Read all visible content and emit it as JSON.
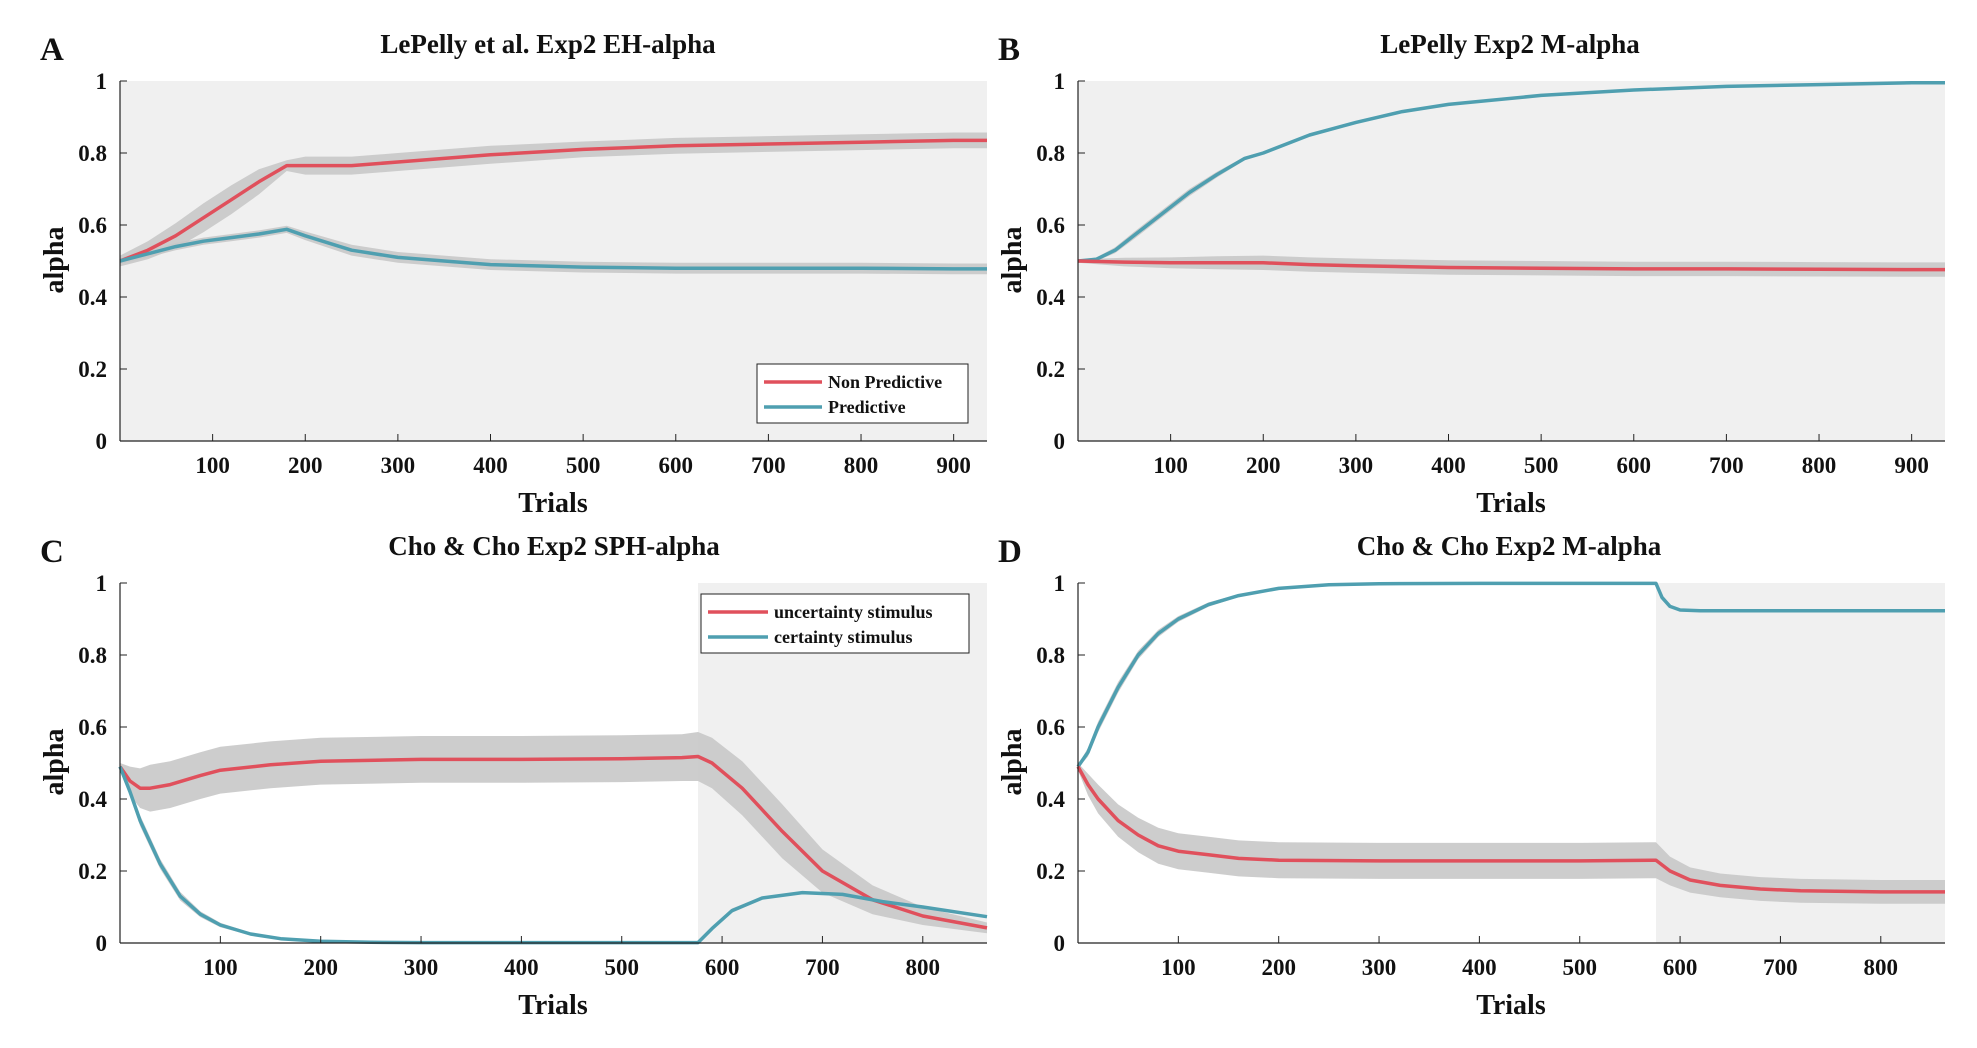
{
  "colors": {
    "red": "#e0505c",
    "teal": "#4f9fb0",
    "band": "#c8c8c8",
    "shade": "#f0f0f0"
  },
  "chart_data": [
    {
      "panel": "A",
      "type": "line",
      "title": "LePelly et al. Exp2 EH-alpha",
      "xlabel": "Trials",
      "ylabel": "alpha",
      "xlim": [
        0,
        936
      ],
      "ylim": [
        0,
        1
      ],
      "xticks": [
        100,
        200,
        300,
        400,
        500,
        600,
        700,
        800,
        900
      ],
      "yticks": [
        0,
        0.2,
        0.4,
        0.6,
        0.8,
        1
      ],
      "shaded_x": [
        [
          0,
          936
        ]
      ],
      "legend": {
        "position": "bottom-right"
      },
      "series": [
        {
          "name": "Non Predictive",
          "color": "red",
          "x": [
            0,
            30,
            60,
            90,
            120,
            150,
            180,
            200,
            250,
            300,
            350,
            400,
            500,
            600,
            700,
            800,
            900,
            936
          ],
          "y": [
            0.5,
            0.53,
            0.57,
            0.62,
            0.67,
            0.72,
            0.765,
            0.765,
            0.765,
            0.775,
            0.785,
            0.795,
            0.81,
            0.82,
            0.825,
            0.83,
            0.835,
            0.835
          ],
          "band": [
            0.015,
            0.025,
            0.035,
            0.04,
            0.04,
            0.035,
            0.015,
            0.025,
            0.025,
            0.025,
            0.025,
            0.025,
            0.022,
            0.022,
            0.022,
            0.022,
            0.022,
            0.022
          ]
        },
        {
          "name": "Predictive",
          "color": "teal",
          "x": [
            0,
            30,
            60,
            90,
            120,
            150,
            180,
            200,
            250,
            300,
            350,
            400,
            500,
            600,
            700,
            800,
            900,
            936
          ],
          "y": [
            0.5,
            0.52,
            0.54,
            0.555,
            0.565,
            0.575,
            0.588,
            0.57,
            0.53,
            0.51,
            0.5,
            0.49,
            0.483,
            0.48,
            0.48,
            0.48,
            0.478,
            0.478
          ],
          "band": [
            0.008,
            0.01,
            0.01,
            0.01,
            0.01,
            0.01,
            0.01,
            0.012,
            0.015,
            0.015,
            0.015,
            0.015,
            0.015,
            0.015,
            0.015,
            0.015,
            0.015,
            0.015
          ]
        }
      ]
    },
    {
      "panel": "B",
      "type": "line",
      "title": "LePelly Exp2 M-alpha",
      "xlabel": "Trials",
      "ylabel": "alpha",
      "xlim": [
        0,
        936
      ],
      "ylim": [
        0,
        1
      ],
      "xticks": [
        100,
        200,
        300,
        400,
        500,
        600,
        700,
        800,
        900
      ],
      "yticks": [
        0,
        0.2,
        0.4,
        0.6,
        0.8,
        1
      ],
      "shaded_x": [
        [
          0,
          936
        ]
      ],
      "series": [
        {
          "color": "teal",
          "x": [
            0,
            20,
            40,
            60,
            90,
            120,
            150,
            180,
            200,
            250,
            300,
            350,
            400,
            500,
            600,
            700,
            800,
            900,
            936
          ],
          "y": [
            0.5,
            0.505,
            0.53,
            0.57,
            0.63,
            0.69,
            0.74,
            0.785,
            0.8,
            0.85,
            0.885,
            0.915,
            0.935,
            0.96,
            0.975,
            0.985,
            0.99,
            0.995,
            0.995
          ],
          "band": [
            0.003,
            0.005,
            0.008,
            0.01,
            0.01,
            0.01,
            0.008,
            0.005,
            0.004,
            0.004,
            0.003,
            0.003,
            0.003,
            0.002,
            0.002,
            0.002,
            0.002,
            0.002,
            0.002
          ]
        },
        {
          "color": "red",
          "x": [
            0,
            50,
            100,
            150,
            200,
            250,
            300,
            400,
            500,
            600,
            700,
            800,
            900,
            936
          ],
          "y": [
            0.5,
            0.497,
            0.495,
            0.495,
            0.495,
            0.49,
            0.487,
            0.482,
            0.48,
            0.478,
            0.478,
            0.477,
            0.476,
            0.476
          ],
          "band": [
            0.005,
            0.012,
            0.015,
            0.018,
            0.02,
            0.02,
            0.02,
            0.02,
            0.02,
            0.02,
            0.02,
            0.02,
            0.02,
            0.02
          ]
        }
      ]
    },
    {
      "panel": "C",
      "type": "line",
      "title": "Cho & Cho Exp2 SPH-alpha",
      "xlabel": "Trials",
      "ylabel": "alpha",
      "xlim": [
        0,
        864
      ],
      "ylim": [
        0,
        1
      ],
      "xticks": [
        100,
        200,
        300,
        400,
        500,
        600,
        700,
        800
      ],
      "yticks": [
        0,
        0.2,
        0.4,
        0.6,
        0.8,
        1
      ],
      "shaded_x": [
        [
          576,
          864
        ]
      ],
      "legend": {
        "position": "top-right"
      },
      "series": [
        {
          "name": "uncertainty stimulus",
          "color": "red",
          "x": [
            0,
            10,
            20,
            30,
            50,
            80,
            100,
            150,
            200,
            300,
            400,
            500,
            560,
            576,
            590,
            620,
            660,
            700,
            750,
            800,
            864
          ],
          "y": [
            0.49,
            0.45,
            0.43,
            0.43,
            0.44,
            0.465,
            0.48,
            0.495,
            0.505,
            0.51,
            0.51,
            0.512,
            0.515,
            0.518,
            0.5,
            0.43,
            0.31,
            0.2,
            0.12,
            0.075,
            0.042
          ],
          "band": [
            0.01,
            0.04,
            0.055,
            0.065,
            0.065,
            0.065,
            0.065,
            0.065,
            0.065,
            0.065,
            0.065,
            0.065,
            0.065,
            0.068,
            0.07,
            0.075,
            0.075,
            0.06,
            0.04,
            0.025,
            0.015
          ]
        },
        {
          "name": "certainty stimulus",
          "color": "teal",
          "x": [
            0,
            10,
            20,
            40,
            60,
            80,
            100,
            130,
            160,
            200,
            250,
            300,
            576,
            590,
            610,
            640,
            680,
            720,
            760,
            800,
            864
          ],
          "y": [
            0.49,
            0.42,
            0.34,
            0.22,
            0.13,
            0.08,
            0.05,
            0.025,
            0.012,
            0.005,
            0.002,
            0.001,
            0.001,
            0.04,
            0.09,
            0.125,
            0.14,
            0.135,
            0.115,
            0.1,
            0.073
          ],
          "band": [
            0.005,
            0.012,
            0.015,
            0.014,
            0.012,
            0.008,
            0.006,
            0.004,
            0.003,
            0.002,
            0.001,
            0.001,
            0.001,
            0.005,
            0.006,
            0.004,
            0.003,
            0.003,
            0.003,
            0.003,
            0.003
          ]
        }
      ]
    },
    {
      "panel": "D",
      "type": "line",
      "title": "Cho & Cho Exp2 M-alpha",
      "xlabel": "Trials",
      "ylabel": "alpha",
      "xlim": [
        0,
        864
      ],
      "ylim": [
        0,
        1
      ],
      "xticks": [
        100,
        200,
        300,
        400,
        500,
        600,
        700,
        800
      ],
      "yticks": [
        0,
        0.2,
        0.4,
        0.6,
        0.8,
        1
      ],
      "shaded_x": [
        [
          576,
          864
        ]
      ],
      "series": [
        {
          "color": "teal",
          "x": [
            0,
            10,
            20,
            40,
            60,
            80,
            100,
            130,
            160,
            200,
            250,
            300,
            400,
            576,
            582,
            590,
            600,
            620,
            864
          ],
          "y": [
            0.49,
            0.53,
            0.6,
            0.71,
            0.8,
            0.86,
            0.9,
            0.94,
            0.965,
            0.985,
            0.995,
            0.998,
            0.999,
            0.999,
            0.96,
            0.935,
            0.925,
            0.923,
            0.923
          ],
          "band": [
            0.005,
            0.012,
            0.015,
            0.015,
            0.012,
            0.01,
            0.008,
            0.006,
            0.004,
            0.003,
            0.002,
            0.001,
            0.001,
            0.001,
            0.004,
            0.004,
            0.003,
            0.002,
            0.002
          ]
        },
        {
          "color": "red",
          "x": [
            0,
            10,
            20,
            40,
            60,
            80,
            100,
            130,
            160,
            200,
            300,
            400,
            500,
            576,
            590,
            610,
            640,
            680,
            720,
            800,
            864
          ],
          "y": [
            0.49,
            0.44,
            0.4,
            0.34,
            0.3,
            0.27,
            0.255,
            0.245,
            0.235,
            0.23,
            0.228,
            0.228,
            0.228,
            0.23,
            0.2,
            0.175,
            0.16,
            0.15,
            0.145,
            0.142,
            0.142
          ],
          "band": [
            0.01,
            0.03,
            0.04,
            0.045,
            0.048,
            0.05,
            0.05,
            0.05,
            0.05,
            0.05,
            0.05,
            0.05,
            0.05,
            0.05,
            0.04,
            0.035,
            0.033,
            0.033,
            0.033,
            0.033,
            0.033
          ]
        }
      ]
    }
  ]
}
